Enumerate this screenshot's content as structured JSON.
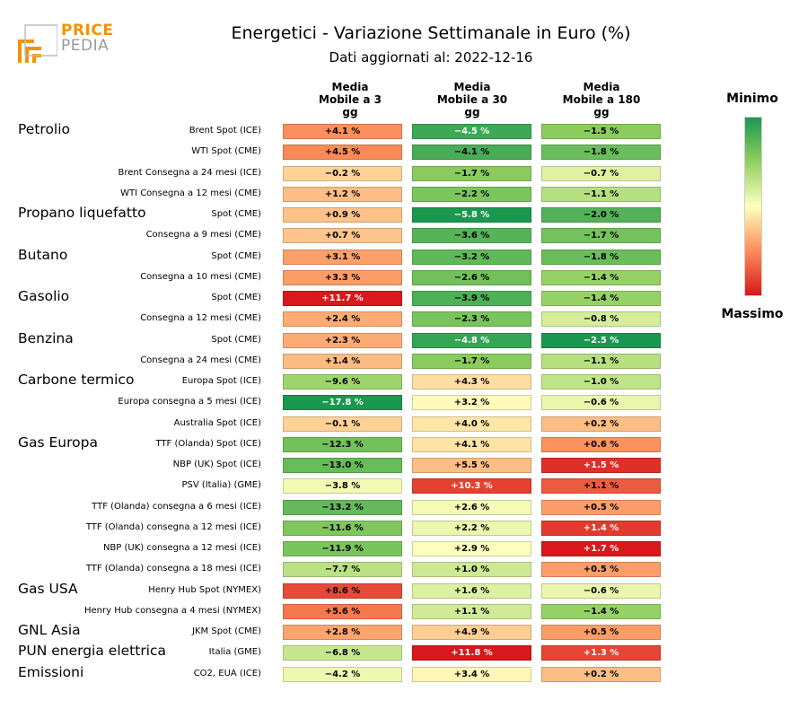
{
  "brand": {
    "price": "PRICE",
    "pedia": "PEDIA"
  },
  "header": {
    "title": "Energetici - Variazione Settimanale in Euro (%)",
    "subtitle": "Dati aggiornati al: 2022-12-16"
  },
  "legend": {
    "min_label": "Minimo",
    "max_label": "Massimo"
  },
  "chart_data": {
    "type": "heatmap",
    "title": "Energetici - Variazione Settimanale in Euro (%)",
    "subtitle": "Dati aggiornati al: 2022-12-16",
    "columns": [
      {
        "lines": [
          "Media",
          "Mobile a 3",
          "gg"
        ]
      },
      {
        "lines": [
          "Media",
          "Mobile a 30",
          "gg"
        ]
      },
      {
        "lines": [
          "Media",
          "Mobile a 180",
          "gg"
        ]
      }
    ],
    "colorscale": {
      "min": "#1a9850",
      "mid": "#ffffbf",
      "max": "#d7191c"
    },
    "column_ranges": [
      [
        -17.8,
        11.7
      ],
      [
        -5.8,
        11.8
      ],
      [
        -2.5,
        1.7
      ]
    ],
    "groups": [
      {
        "name": "Petrolio",
        "rows": [
          {
            "label": "Brent Spot (ICE)",
            "display": [
              "+4.1 %",
              "−4.5 %",
              "−1.5 %"
            ],
            "values": [
              4.1,
              -4.5,
              -1.5
            ]
          },
          {
            "label": "WTI Spot (CME)",
            "display": [
              "+4.5 %",
              "−4.1 %",
              "−1.8 %"
            ],
            "values": [
              4.5,
              -4.1,
              -1.8
            ]
          },
          {
            "label": "Brent Consegna a 24 mesi (ICE)",
            "display": [
              "−0.2 %",
              "−1.7 %",
              "−0.7 %"
            ],
            "values": [
              -0.2,
              -1.7,
              -0.7
            ]
          },
          {
            "label": "WTI Consegna a 12 mesi (CME)",
            "display": [
              "+1.2 %",
              "−2.2 %",
              "−1.1 %"
            ],
            "values": [
              1.2,
              -2.2,
              -1.1
            ]
          }
        ]
      },
      {
        "name": "Propano liquefatto",
        "rows": [
          {
            "label": "Spot (CME)",
            "display": [
              "+0.9 %",
              "−5.8 %",
              "−2.0 %"
            ],
            "values": [
              0.9,
              -5.8,
              -2.0
            ]
          },
          {
            "label": "Consegna a 9 mesi (CME)",
            "display": [
              "+0.7 %",
              "−3.6 %",
              "−1.7 %"
            ],
            "values": [
              0.7,
              -3.6,
              -1.7
            ]
          }
        ]
      },
      {
        "name": "Butano",
        "rows": [
          {
            "label": "Spot (CME)",
            "display": [
              "+3.1 %",
              "−3.2 %",
              "−1.8 %"
            ],
            "values": [
              3.1,
              -3.2,
              -1.8
            ]
          },
          {
            "label": "Consegna a 10 mesi (CME)",
            "display": [
              "+3.3 %",
              "−2.6 %",
              "−1.4 %"
            ],
            "values": [
              3.3,
              -2.6,
              -1.4
            ]
          }
        ]
      },
      {
        "name": "Gasolio",
        "rows": [
          {
            "label": "Spot (CME)",
            "display": [
              "+11.7 %",
              "−3.9 %",
              "−1.4 %"
            ],
            "values": [
              11.7,
              -3.9,
              -1.4
            ]
          },
          {
            "label": "Consegna a 12 mesi (CME)",
            "display": [
              "+2.4 %",
              "−2.3 %",
              "−0.8 %"
            ],
            "values": [
              2.4,
              -2.3,
              -0.8
            ]
          }
        ]
      },
      {
        "name": "Benzina",
        "rows": [
          {
            "label": "Spot (CME)",
            "display": [
              "+2.3 %",
              "−4.8 %",
              "−2.5 %"
            ],
            "values": [
              2.3,
              -4.8,
              -2.5
            ]
          },
          {
            "label": "Consegna a 24 mesi (CME)",
            "display": [
              "+1.4 %",
              "−1.7 %",
              "−1.1 %"
            ],
            "values": [
              1.4,
              -1.7,
              -1.1
            ]
          }
        ]
      },
      {
        "name": "Carbone termico",
        "rows": [
          {
            "label": "Europa Spot (ICE)",
            "display": [
              "−9.6 %",
              "+4.3 %",
              "−1.0 %"
            ],
            "values": [
              -9.6,
              4.3,
              -1.0
            ]
          },
          {
            "label": "Europa consegna a 5 mesi (ICE)",
            "display": [
              "−17.8 %",
              "+3.2 %",
              "−0.6 %"
            ],
            "values": [
              -17.8,
              3.2,
              -0.6
            ]
          },
          {
            "label": "Australia Spot (ICE)",
            "display": [
              "−0.1 %",
              "+4.0 %",
              "+0.2 %"
            ],
            "values": [
              -0.1,
              4.0,
              0.2
            ]
          }
        ]
      },
      {
        "name": "Gas Europa",
        "rows": [
          {
            "label": "TTF (Olanda) Spot (ICE)",
            "display": [
              "−12.3 %",
              "+4.1 %",
              "+0.6 %"
            ],
            "values": [
              -12.3,
              4.1,
              0.6
            ]
          },
          {
            "label": "NBP (UK) Spot (ICE)",
            "display": [
              "−13.0 %",
              "+5.5 %",
              "+1.5 %"
            ],
            "values": [
              -13.0,
              5.5,
              1.5
            ]
          },
          {
            "label": "PSV (Italia) (GME)",
            "display": [
              "−3.8 %",
              "+10.3 %",
              "+1.1 %"
            ],
            "values": [
              -3.8,
              10.3,
              1.1
            ]
          },
          {
            "label": "TTF (Olanda) consegna a 6 mesi (ICE)",
            "display": [
              "−13.2 %",
              "+2.6 %",
              "+0.5 %"
            ],
            "values": [
              -13.2,
              2.6,
              0.5
            ]
          },
          {
            "label": "TTF (Olanda) consegna a 12 mesi (ICE)",
            "display": [
              "−11.6 %",
              "+2.2 %",
              "+1.4 %"
            ],
            "values": [
              -11.6,
              2.2,
              1.4
            ]
          },
          {
            "label": "NBP (UK) consegna a 12 mesi (ICE)",
            "display": [
              "−11.9 %",
              "+2.9 %",
              "+1.7 %"
            ],
            "values": [
              -11.9,
              2.9,
              1.7
            ]
          },
          {
            "label": "TTF (Olanda) consegna a 18 mesi (ICE)",
            "display": [
              "−7.7 %",
              "+1.0 %",
              "+0.5 %"
            ],
            "values": [
              -7.7,
              1.0,
              0.5
            ]
          }
        ]
      },
      {
        "name": "Gas USA",
        "rows": [
          {
            "label": "Henry Hub Spot (NYMEX)",
            "display": [
              "+8.6 %",
              "+1.6 %",
              "−0.6 %"
            ],
            "values": [
              8.6,
              1.6,
              -0.6
            ]
          },
          {
            "label": "Henry Hub consegna a 4 mesi (NYMEX)",
            "display": [
              "+5.6 %",
              "+1.1 %",
              "−1.4 %"
            ],
            "values": [
              5.6,
              1.1,
              -1.4
            ]
          }
        ]
      },
      {
        "name": "GNL Asia",
        "rows": [
          {
            "label": "JKM Spot (CME)",
            "display": [
              "+2.8 %",
              "+4.9 %",
              "+0.5 %"
            ],
            "values": [
              2.8,
              4.9,
              0.5
            ]
          }
        ]
      },
      {
        "name": "PUN energia elettrica",
        "rows": [
          {
            "label": "Italia (GME)",
            "display": [
              "−6.8 %",
              "+11.8 %",
              "+1.3 %"
            ],
            "values": [
              -6.8,
              11.8,
              1.3
            ]
          }
        ]
      },
      {
        "name": "Emissioni",
        "rows": [
          {
            "label": "CO2, EUA (ICE)",
            "display": [
              "−4.2 %",
              "+3.4 %",
              "+0.2 %"
            ],
            "values": [
              -4.2,
              3.4,
              0.2
            ]
          }
        ]
      }
    ]
  }
}
